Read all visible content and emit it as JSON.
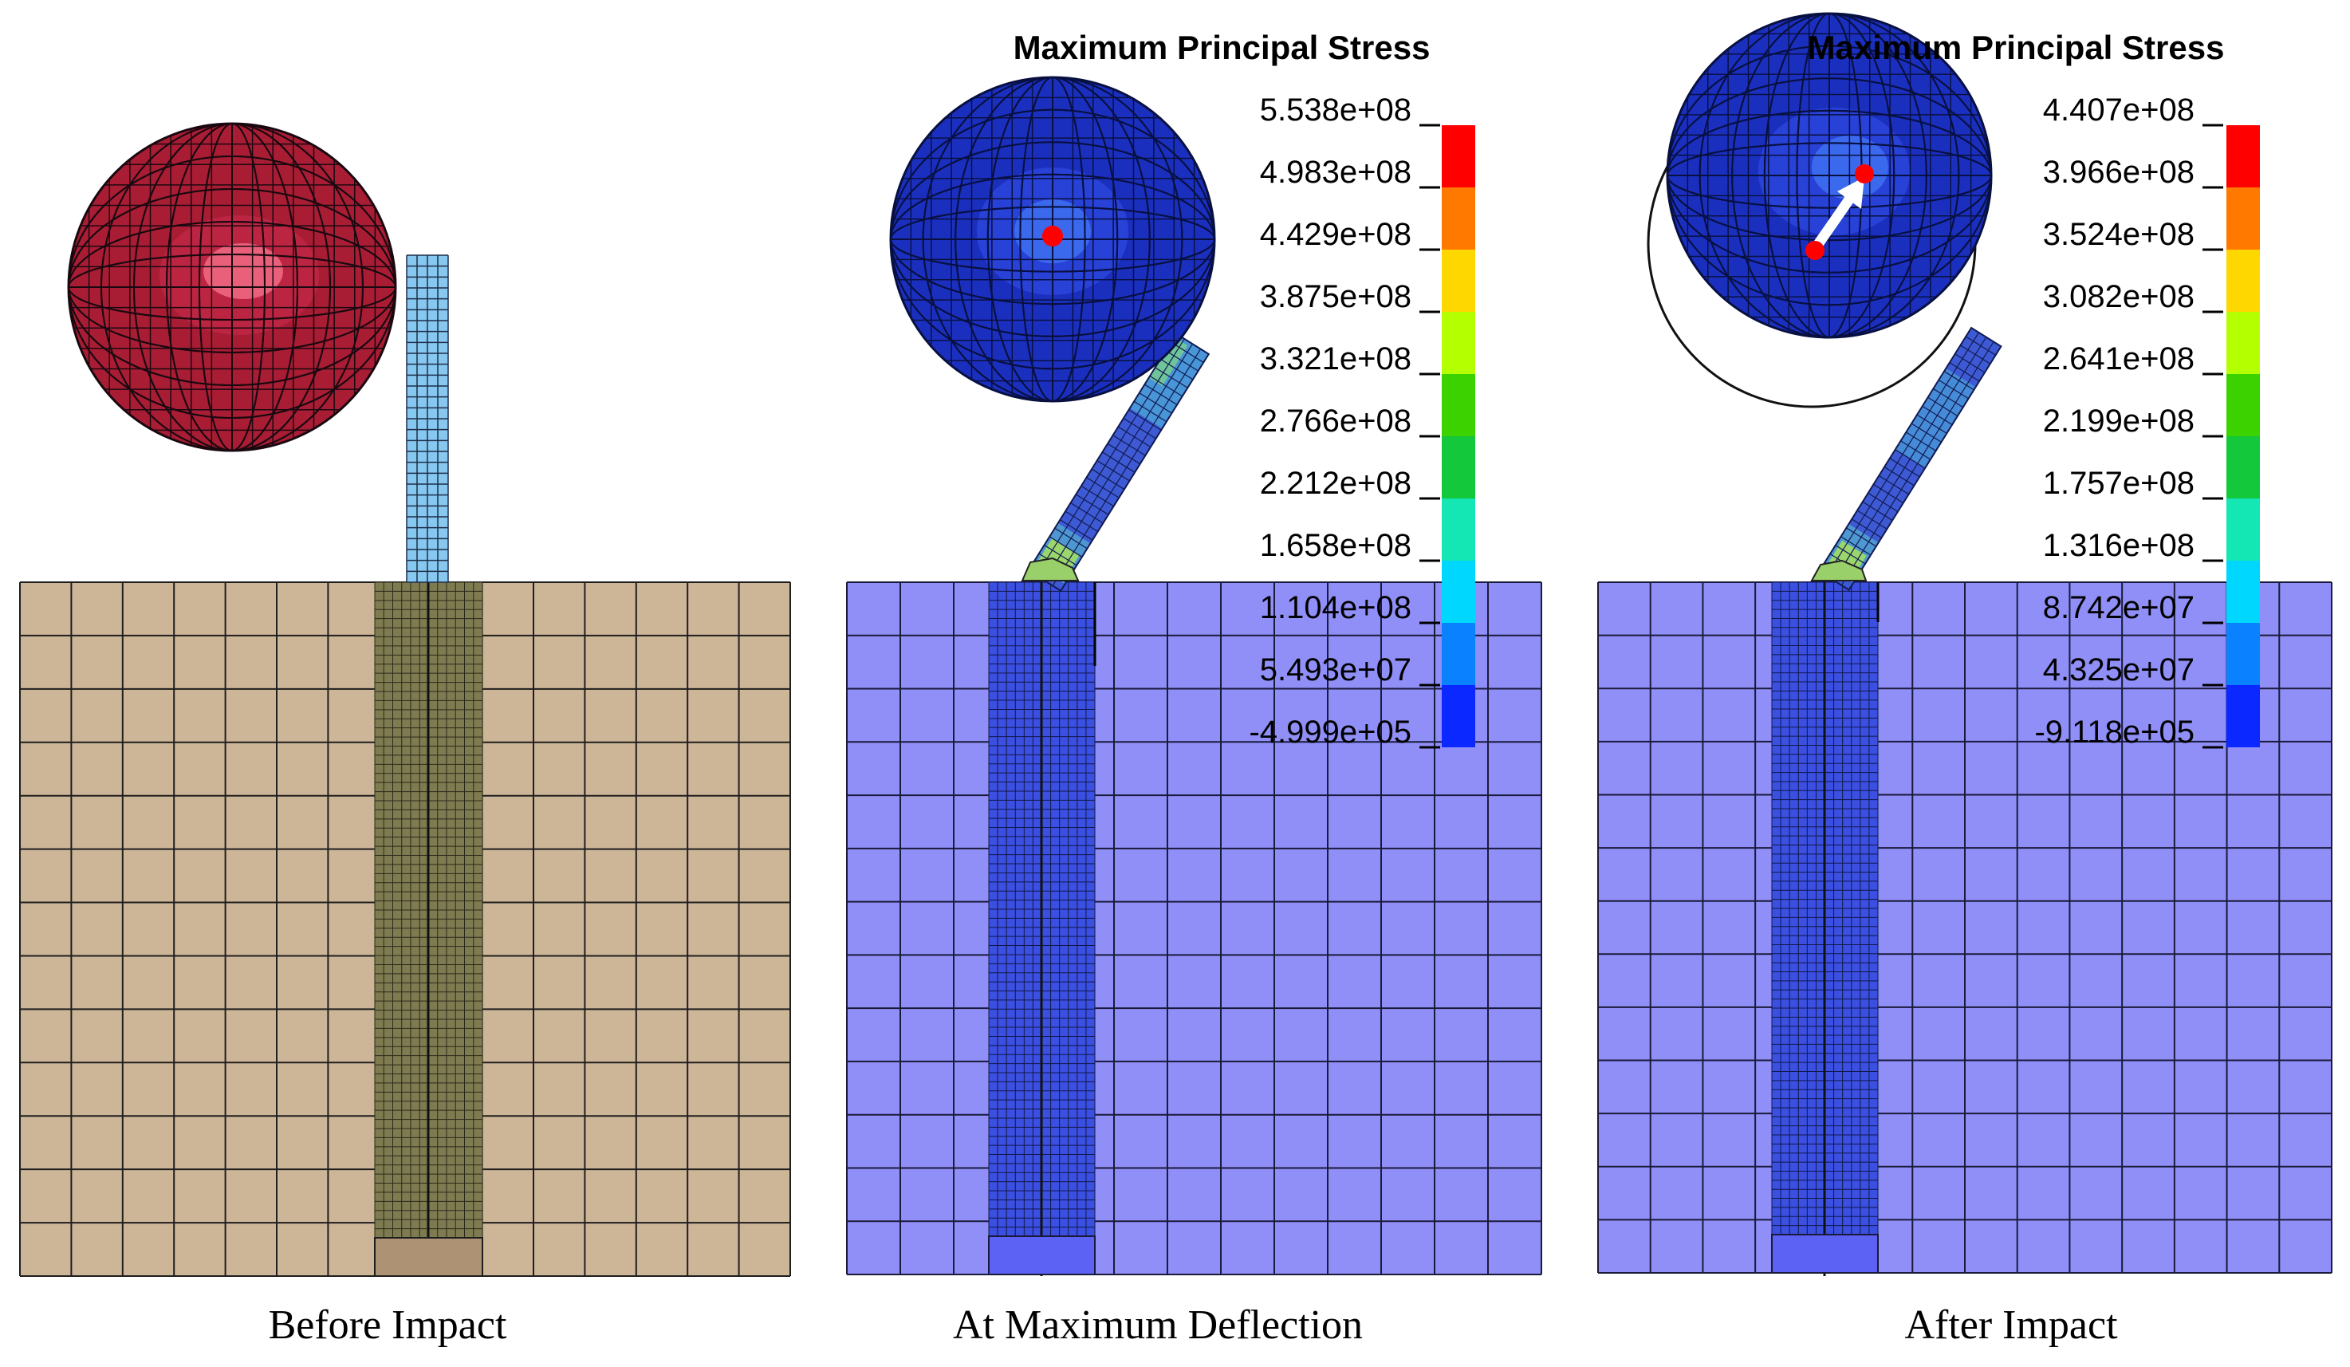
{
  "panels": [
    {
      "id": "before",
      "caption": "Before Impact",
      "theme": {
        "soil": "#cdb598",
        "pile": "#7f7b51",
        "pile_base": "#ad9373",
        "grid_line": "#1e1e1e",
        "column": "#87c8f0",
        "ball": "#a81d34",
        "ball_highlight": "#f16b84"
      }
    },
    {
      "id": "maxdef",
      "caption": "At Maximum Deflection",
      "title": "Maximum Principal Stress",
      "legend_values": [
        "5.538e+08",
        "4.983e+08",
        "4.429e+08",
        "3.875e+08",
        "3.321e+08",
        "2.766e+08",
        "2.212e+08",
        "1.658e+08",
        "1.104e+08",
        "5.493e+07",
        "-4.999e+05"
      ],
      "theme": {
        "soil": "#8f8ff7",
        "pile": "#3b4fe0",
        "pile_base": "#5c63f4",
        "grid_line": "#1a1a3a",
        "column": "#3d5ad4",
        "ball": "#1b2fbf",
        "ball_highlight": "#3d6ef0"
      }
    },
    {
      "id": "after",
      "caption": "After Impact",
      "title": "Maximum Principal Stress",
      "legend_values": [
        "4.407e+08",
        "3.966e+08",
        "3.524e+08",
        "3.082e+08",
        "2.641e+08",
        "2.199e+08",
        "1.757e+08",
        "1.316e+08",
        "8.742e+07",
        "4.325e+07",
        "-9.118e+05"
      ],
      "theme": {
        "soil": "#8f8ff7",
        "pile": "#3b4fe0",
        "pile_base": "#5c63f4",
        "grid_line": "#1a1a3a",
        "column": "#3d5ad4",
        "ball": "#1b2fbf",
        "ball_highlight": "#3d6ef0"
      }
    }
  ],
  "legend_colors": [
    "#ff0000",
    "#ff7800",
    "#ffd700",
    "#b4ff00",
    "#3cd200",
    "#14c83c",
    "#14e6b4",
    "#00d7ff",
    "#0a82ff",
    "#0a28ff"
  ],
  "marker_color": "#ff0000",
  "arrow_color": "#ffffff"
}
